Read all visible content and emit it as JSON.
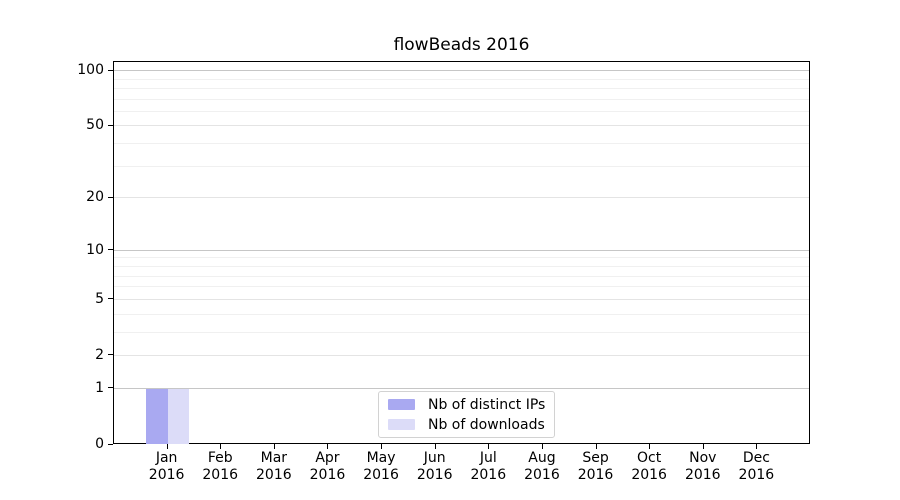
{
  "title": "flowBeads 2016",
  "chart_data": {
    "type": "bar",
    "title": "flowBeads 2016",
    "xlabel": "",
    "ylabel": "",
    "categories": [
      {
        "month": "Jan",
        "year": "2016"
      },
      {
        "month": "Feb",
        "year": "2016"
      },
      {
        "month": "Mar",
        "year": "2016"
      },
      {
        "month": "Apr",
        "year": "2016"
      },
      {
        "month": "May",
        "year": "2016"
      },
      {
        "month": "Jun",
        "year": "2016"
      },
      {
        "month": "Jul",
        "year": "2016"
      },
      {
        "month": "Aug",
        "year": "2016"
      },
      {
        "month": "Sep",
        "year": "2016"
      },
      {
        "month": "Oct",
        "year": "2016"
      },
      {
        "month": "Nov",
        "year": "2016"
      },
      {
        "month": "Dec",
        "year": "2016"
      }
    ],
    "series": [
      {
        "name": "Nb of distinct IPs",
        "color": "#a9a9f1",
        "values": [
          1,
          0,
          0,
          0,
          0,
          0,
          0,
          0,
          0,
          0,
          0,
          0
        ]
      },
      {
        "name": "Nb of downloads",
        "color": "#dcdcf8",
        "values": [
          1,
          0,
          0,
          0,
          0,
          0,
          0,
          0,
          0,
          0,
          0,
          0
        ]
      }
    ],
    "y_axis": {
      "scale": "log1p",
      "ticks": [
        0,
        1,
        2,
        5,
        10,
        20,
        50,
        100
      ],
      "ylim": [
        0,
        112
      ],
      "gridlines": {
        "major": [
          1,
          10,
          100
        ],
        "mid": [
          2,
          5,
          20,
          50
        ],
        "minor": [
          3,
          4,
          6,
          7,
          8,
          9,
          30,
          40,
          60,
          70,
          80,
          90
        ]
      }
    },
    "grid": true,
    "legend_position": "bottom-center",
    "colors": {
      "axis": "#000000",
      "major_grid": "#c6c6c6",
      "mid_grid": "#e4e4e4",
      "minor_grid": "#f0f0f0",
      "legend_border": "#d2d2d2"
    }
  }
}
